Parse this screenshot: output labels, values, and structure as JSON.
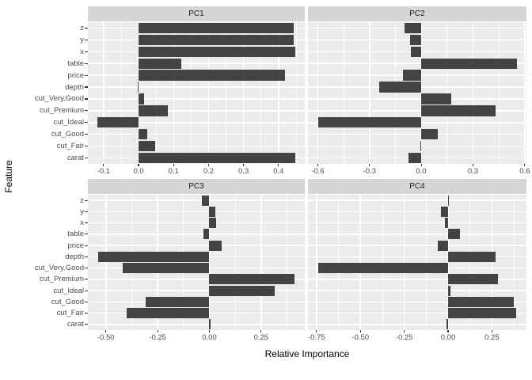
{
  "figure": {
    "y_axis_title": "Feature",
    "x_axis_title": "Relative Importance",
    "colors": {
      "bar": "#434343",
      "panel_background": "#ebebeb",
      "strip_background": "#d5d5d5",
      "gridline": "#ffffff",
      "axis_text": "#4d4d4d",
      "tick_mark": "#333333"
    }
  },
  "chart_data": {
    "type": "bar",
    "orientation": "horizontal",
    "title": "",
    "xlabel": "Relative Importance",
    "ylabel": "Feature",
    "legend": false,
    "grid": true,
    "facet_titles": [
      "PC1",
      "PC2",
      "PC3",
      "PC4"
    ],
    "categories_top_to_bottom": [
      "z",
      "y",
      "x",
      "table",
      "price",
      "depth",
      "cut_Very.Good",
      "cut_Premium",
      "cut_Ideal",
      "cut_Good",
      "cut_Fair",
      "carat"
    ],
    "facets": [
      {
        "title": "PC1",
        "xlim": [
          -0.145,
          0.475
        ],
        "ticks": {
          "values": [
            -0.1,
            0.0,
            0.1,
            0.2,
            0.3,
            0.4
          ],
          "labels": [
            "-0.1",
            "0.0",
            "0.1",
            "0.2",
            "0.3",
            "0.4"
          ]
        },
        "values": [
          0.443,
          0.443,
          0.448,
          0.122,
          0.419,
          -0.003,
          0.015,
          0.083,
          -0.117,
          0.025,
          0.048,
          0.448
        ]
      },
      {
        "title": "PC2",
        "xlim": [
          -0.657,
          0.61
        ],
        "ticks": {
          "values": [
            -0.6,
            -0.3,
            0.0,
            0.3,
            0.6
          ],
          "labels": [
            "-0.6",
            "-0.3",
            "0.0",
            "0.3",
            "0.6"
          ]
        },
        "values": [
          -0.095,
          -0.066,
          -0.06,
          0.553,
          -0.104,
          -0.242,
          0.175,
          0.431,
          -0.598,
          0.098,
          -0.006,
          -0.076
        ]
      },
      {
        "title": "PC3",
        "xlim": [
          -0.587,
          0.461
        ],
        "ticks": {
          "values": [
            -0.5,
            -0.25,
            0.0,
            0.25
          ],
          "labels": [
            "-0.50",
            "-0.25",
            "0.00",
            "0.25"
          ]
        },
        "values": [
          -0.036,
          0.028,
          0.033,
          -0.028,
          0.058,
          -0.539,
          -0.419,
          0.413,
          0.317,
          -0.309,
          -0.399,
          0.005
        ]
      },
      {
        "title": "PC4",
        "xlim": [
          -0.799,
          0.447
        ],
        "ticks": {
          "values": [
            -0.75,
            -0.5,
            -0.25,
            0.0,
            0.25
          ],
          "labels": [
            "-0.75",
            "-0.50",
            "-0.25",
            "0.00",
            "0.25"
          ]
        },
        "values": [
          0.004,
          -0.039,
          -0.018,
          0.068,
          -0.057,
          0.27,
          -0.742,
          0.283,
          0.015,
          0.374,
          0.39,
          -0.01
        ]
      }
    ]
  }
}
